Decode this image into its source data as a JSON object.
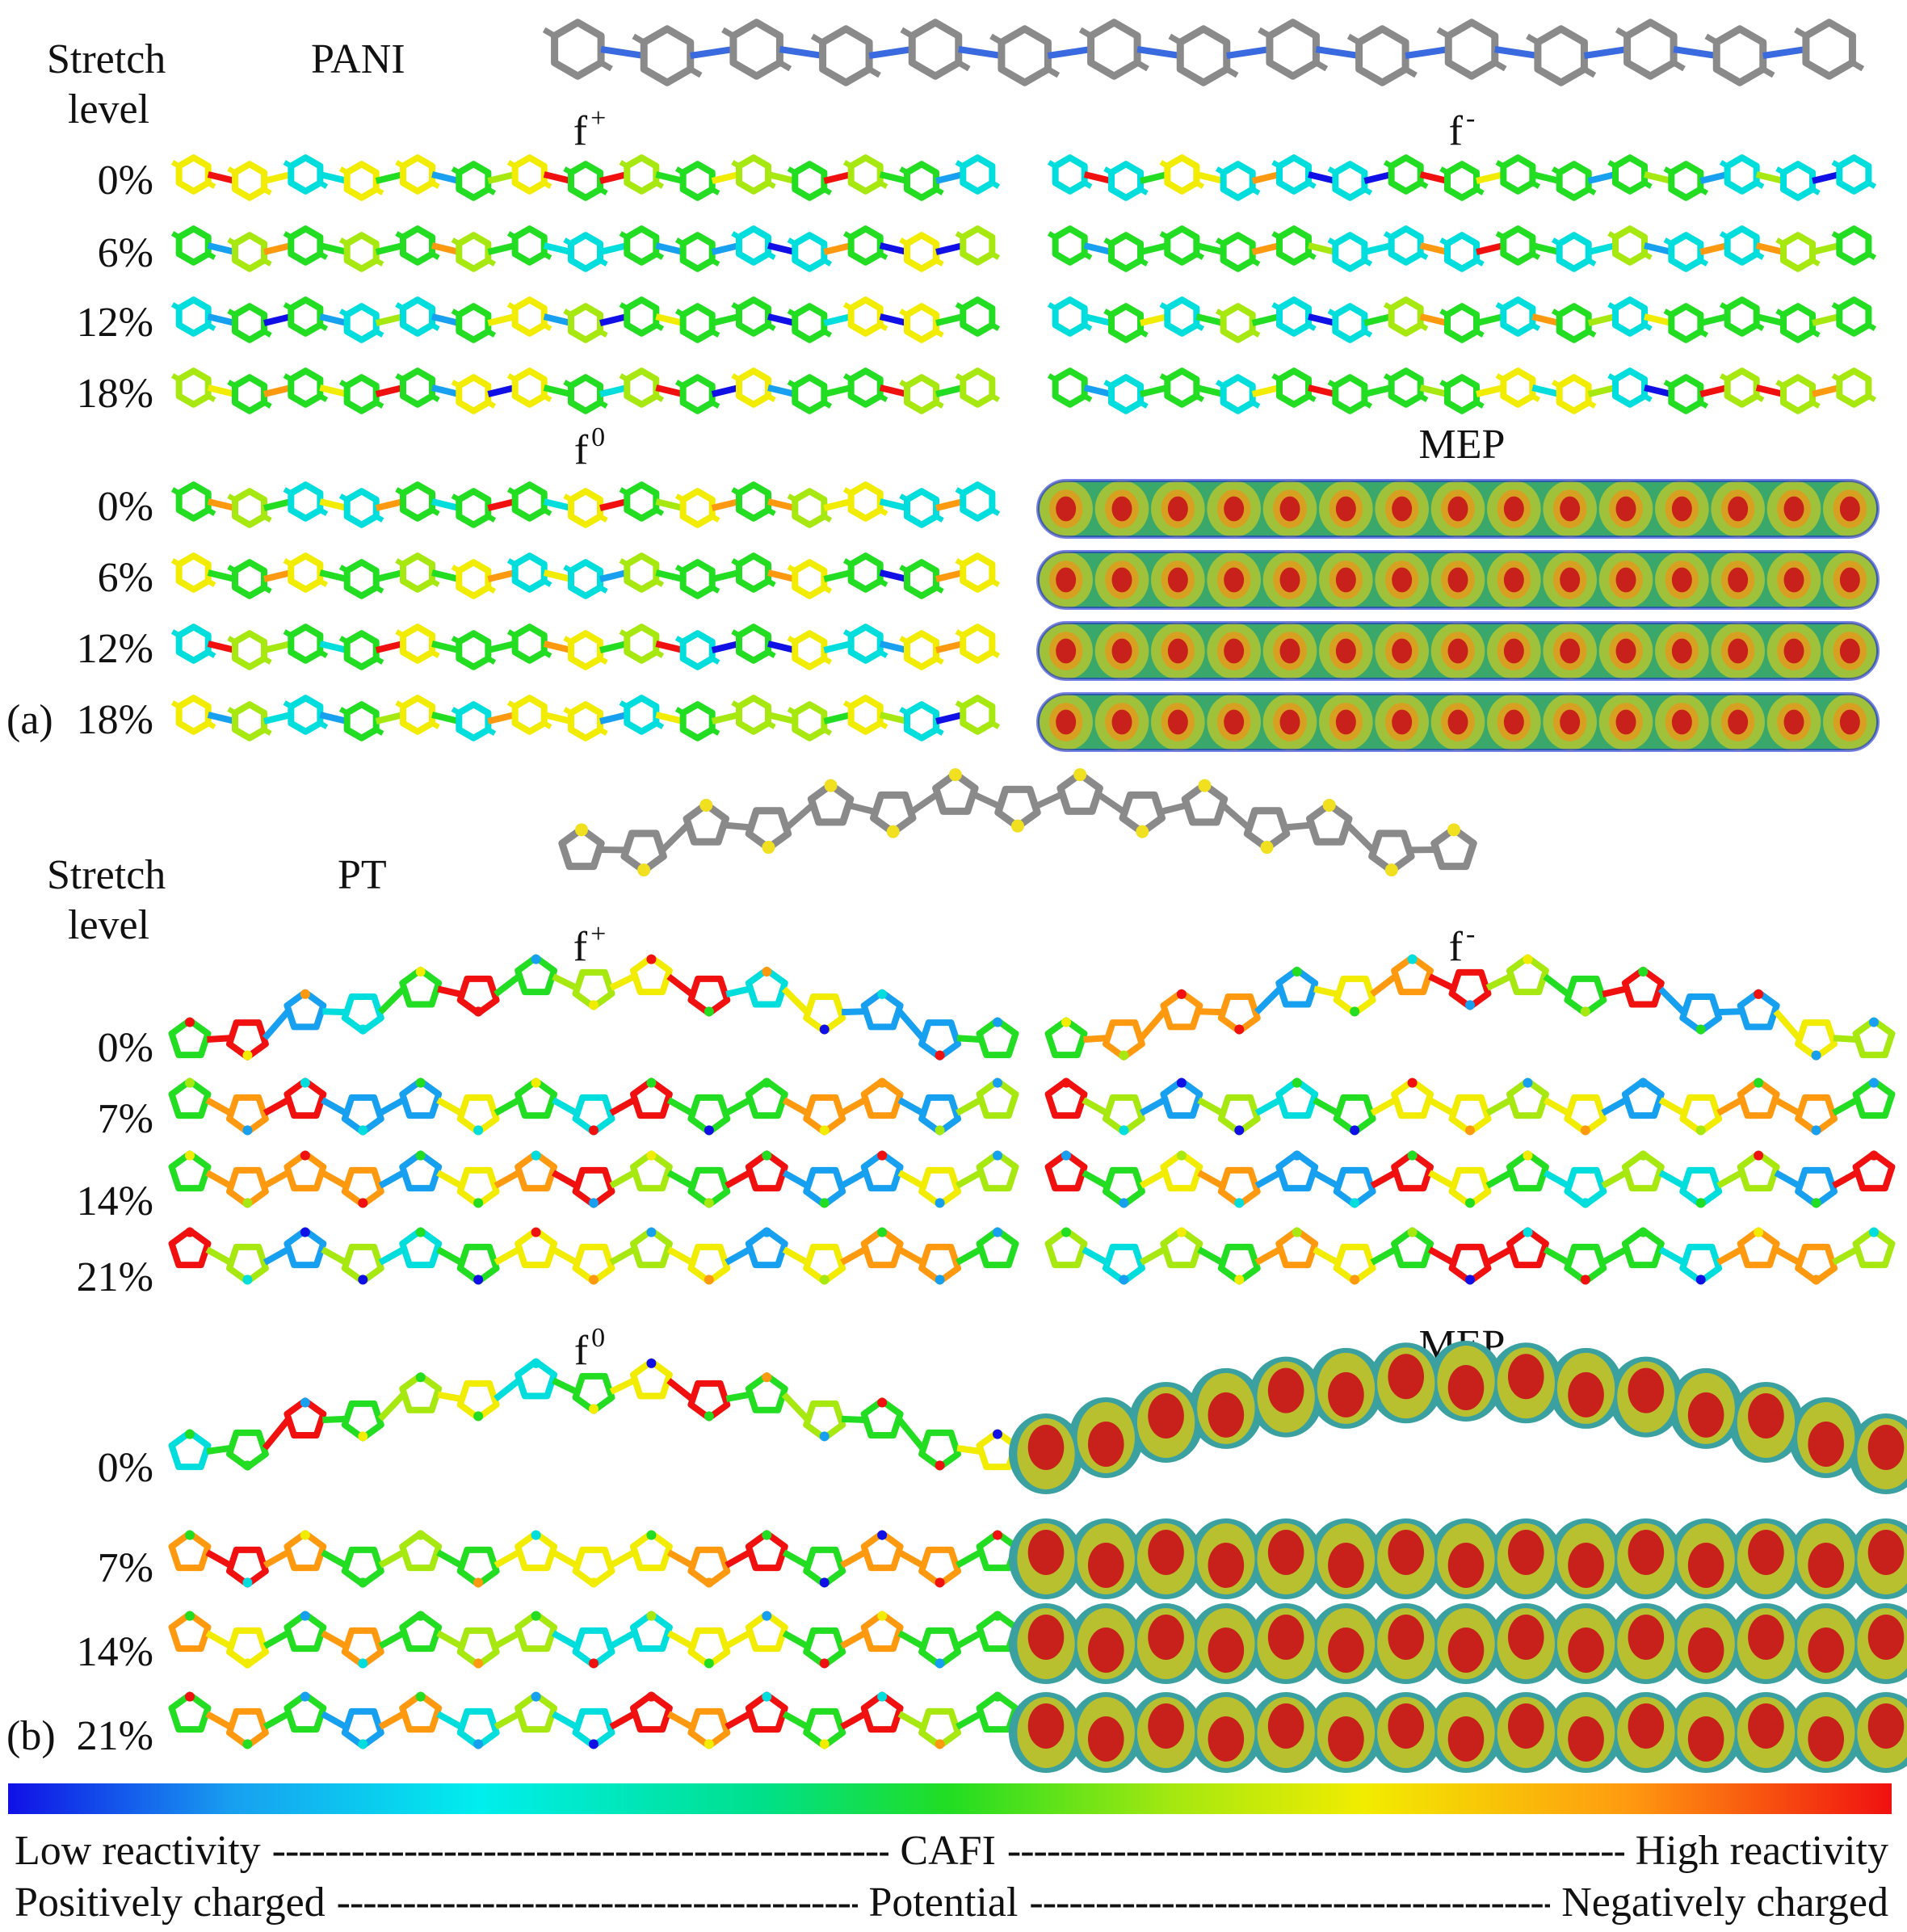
{
  "section_a": {
    "stretch_label": "Stretch",
    "level_label": "level",
    "polymer": "PANI",
    "panel_label": "(a)",
    "levels": [
      "0%",
      "6%",
      "12%",
      "18%"
    ],
    "f_plus": "f",
    "f_plus_sup": "+",
    "f_minus": "f",
    "f_minus_sup": "-",
    "f_zero": "f",
    "f_zero_sup": "0",
    "mep": "MEP"
  },
  "section_b": {
    "stretch_label": "Stretch",
    "level_label": "level",
    "polymer": "PT",
    "panel_label": "(b)",
    "levels": [
      "0%",
      "7%",
      "14%",
      "21%"
    ],
    "f_plus": "f",
    "f_plus_sup": "+",
    "f_minus": "f",
    "f_minus_sup": "-",
    "f_zero": "f",
    "f_zero_sup": "0",
    "mep": "MEP"
  },
  "legend": {
    "row1_left": "Low reactivity",
    "row1_mid": "CAFI",
    "row1_right": "High reactivity",
    "row2_left": "Positively charged",
    "row2_mid": "Potential",
    "row2_right": "Negatively charged",
    "colors": [
      "#1010e6",
      "#00eeee",
      "#22dd22",
      "#f2ec00",
      "#f01010"
    ]
  }
}
